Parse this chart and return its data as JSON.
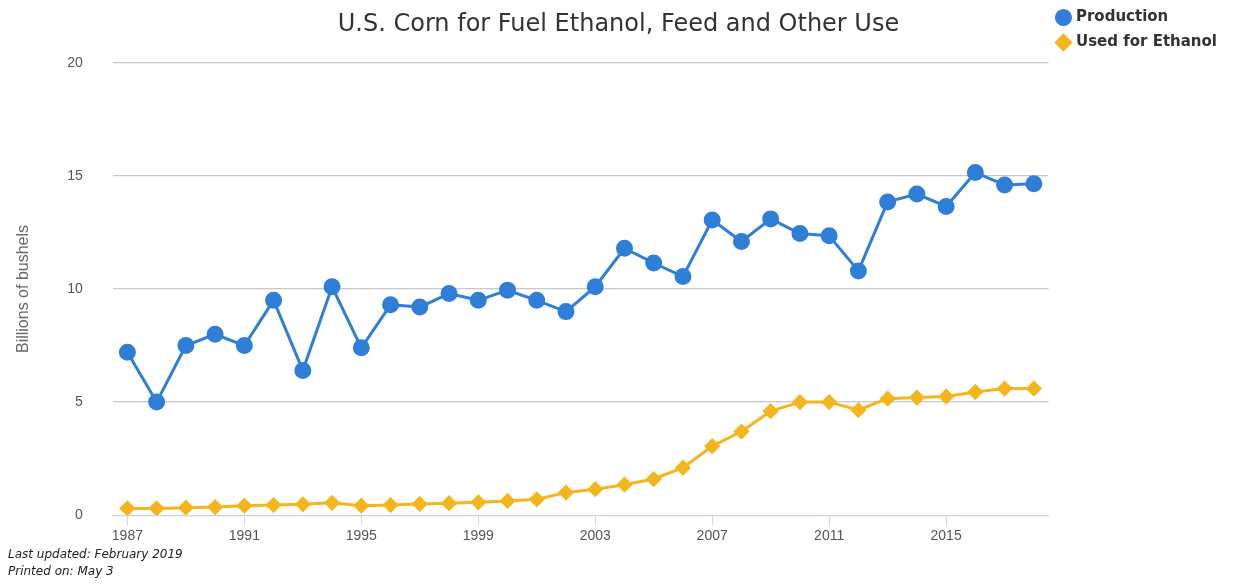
{
  "chart_data": {
    "type": "line",
    "title": "U.S. Corn for Fuel Ethanol, Feed and Other Use",
    "ylabel": "Billions of bushels",
    "x": [
      1987,
      1988,
      1989,
      1990,
      1991,
      1992,
      1993,
      1994,
      1995,
      1996,
      1997,
      1998,
      1999,
      2000,
      2001,
      2002,
      2003,
      2004,
      2005,
      2006,
      2007,
      2008,
      2009,
      2010,
      2011,
      2012,
      2013,
      2014,
      2015,
      2016,
      2017,
      2018
    ],
    "series": [
      {
        "name": "Production",
        "color": "#2f7ed8",
        "marker": "circle",
        "values": [
          7.2,
          5.0,
          7.5,
          8.0,
          7.5,
          9.5,
          6.4,
          10.1,
          7.4,
          9.3,
          9.2,
          9.8,
          9.5,
          9.95,
          9.5,
          9.0,
          10.1,
          11.8,
          11.15,
          10.55,
          13.05,
          12.1,
          13.1,
          12.45,
          12.35,
          10.8,
          13.85,
          14.2,
          13.65,
          15.15,
          14.6,
          14.65
        ]
      },
      {
        "name": "Used for Ethanol",
        "color": "#f5b51c",
        "marker": "diamond",
        "values": [
          0.3,
          0.3,
          0.33,
          0.36,
          0.42,
          0.45,
          0.48,
          0.55,
          0.42,
          0.45,
          0.5,
          0.53,
          0.57,
          0.63,
          0.7,
          1.0,
          1.15,
          1.35,
          1.6,
          2.1,
          3.05,
          3.7,
          4.6,
          5.0,
          5.0,
          4.65,
          5.15,
          5.2,
          5.25,
          5.45,
          5.6,
          5.6
        ]
      }
    ],
    "xlim": [
      1986.5,
      2018.5
    ],
    "xticks": [
      1987,
      1991,
      1995,
      1999,
      2003,
      2007,
      2011,
      2015
    ],
    "ylim": [
      0,
      20
    ],
    "yticks": [
      0,
      5,
      10,
      15,
      20
    ],
    "grid": "y",
    "legend": "top right",
    "line_style": "solid",
    "annotations": [
      "Last updated: February 2019",
      "Printed on: May 3"
    ]
  }
}
